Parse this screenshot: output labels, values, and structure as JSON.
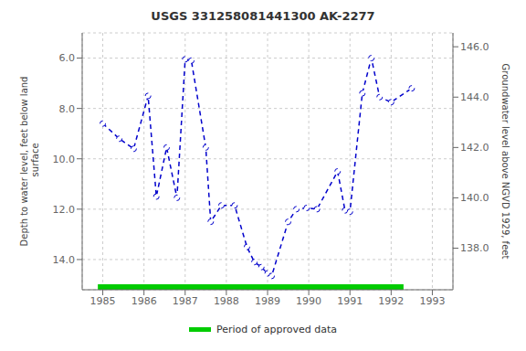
{
  "chart_data": {
    "type": "line",
    "title": "USGS 331258081441300 AK-2277",
    "y_label": "Depth to water level, feet below land\n surface",
    "y2_label": "Groundwater level above NGVD 1929, feet",
    "x": [
      1985.0,
      1985.4,
      1985.75,
      1986.1,
      1986.3,
      1986.55,
      1986.8,
      1987.0,
      1987.15,
      1987.5,
      1987.62,
      1987.88,
      1988.2,
      1988.5,
      1988.68,
      1988.85,
      1989.0,
      1989.1,
      1989.5,
      1989.7,
      1989.95,
      1990.2,
      1990.7,
      1990.88,
      1991.0,
      1991.3,
      1991.52,
      1991.72,
      1992.0,
      1992.5
    ],
    "values": [
      8.6,
      9.2,
      9.6,
      7.5,
      11.5,
      9.55,
      11.55,
      6.05,
      6.1,
      9.55,
      12.5,
      11.85,
      11.85,
      13.5,
      14.1,
      14.3,
      14.55,
      14.65,
      12.5,
      12.0,
      11.95,
      12.0,
      10.5,
      12.05,
      12.1,
      7.4,
      6.0,
      7.55,
      7.75,
      7.2
    ],
    "color": "#0000cc",
    "line_style": "dashed",
    "marker": "circle",
    "xlim": [
      1984.5,
      1993.5
    ],
    "xticks": [
      1985,
      1986,
      1987,
      1988,
      1989,
      1990,
      1991,
      1992,
      1993
    ],
    "ylim": [
      15.2,
      5.0
    ],
    "yticks": [
      {
        "value": 6.0,
        "label": "6.0"
      },
      {
        "value": 8.0,
        "label": "8.0"
      },
      {
        "value": 10.0,
        "label": "10.0"
      },
      {
        "value": 12.0,
        "label": "12.0"
      },
      {
        "value": 14.0,
        "label": "14.0"
      }
    ],
    "y2lim": [
      136.35,
      146.55
    ],
    "y2ticks": [
      {
        "value": 138.0,
        "label": "138.0"
      },
      {
        "value": 140.0,
        "label": "140.0"
      },
      {
        "value": 142.0,
        "label": "142.0"
      },
      {
        "value": 144.0,
        "label": "144.0"
      },
      {
        "value": 146.0,
        "label": "146.0"
      }
    ],
    "grid": true,
    "approved_period": {
      "name": "Period of approved data",
      "color": "#00cc00",
      "x": [
        1984.88,
        1992.3
      ]
    }
  }
}
